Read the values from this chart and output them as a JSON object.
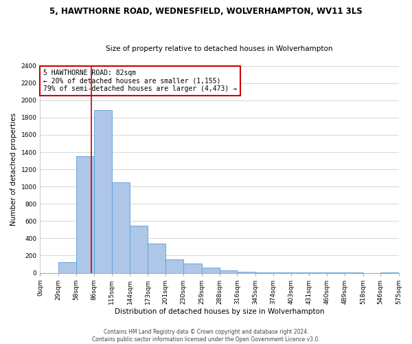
{
  "title": "5, HAWTHORNE ROAD, WEDNESFIELD, WOLVERHAMPTON, WV11 3LS",
  "subtitle": "Size of property relative to detached houses in Wolverhampton",
  "xlabel": "Distribution of detached houses by size in Wolverhampton",
  "ylabel": "Number of detached properties",
  "bin_labels": [
    "0sqm",
    "29sqm",
    "58sqm",
    "86sqm",
    "115sqm",
    "144sqm",
    "173sqm",
    "201sqm",
    "230sqm",
    "259sqm",
    "288sqm",
    "316sqm",
    "345sqm",
    "374sqm",
    "403sqm",
    "431sqm",
    "460sqm",
    "489sqm",
    "518sqm",
    "546sqm",
    "575sqm"
  ],
  "bar_values": [
    0,
    125,
    1350,
    1890,
    1050,
    550,
    340,
    155,
    110,
    60,
    30,
    15,
    5,
    2,
    2,
    1,
    1,
    1,
    0,
    1,
    0
  ],
  "bar_color": "#aec6e8",
  "bar_edge_color": "#5a9fd4",
  "vline_x": 82,
  "vline_color": "#cc0000",
  "annotation_title": "5 HAWTHORNE ROAD: 82sqm",
  "annotation_line1": "← 20% of detached houses are smaller (1,155)",
  "annotation_line2": "79% of semi-detached houses are larger (4,473) →",
  "annotation_box_color": "#ffffff",
  "annotation_box_edge": "#cc0000",
  "ylim": [
    0,
    2400
  ],
  "yticks": [
    0,
    200,
    400,
    600,
    800,
    1000,
    1200,
    1400,
    1600,
    1800,
    2000,
    2200,
    2400
  ],
  "footer1": "Contains HM Land Registry data © Crown copyright and database right 2024.",
  "footer2": "Contains public sector information licensed under the Open Government Licence v3.0.",
  "title_fontsize": 8.5,
  "subtitle_fontsize": 7.5,
  "xlabel_fontsize": 7.5,
  "ylabel_fontsize": 7.5,
  "tick_fontsize": 6.5,
  "annotation_fontsize": 7.0,
  "footer_fontsize": 5.5
}
